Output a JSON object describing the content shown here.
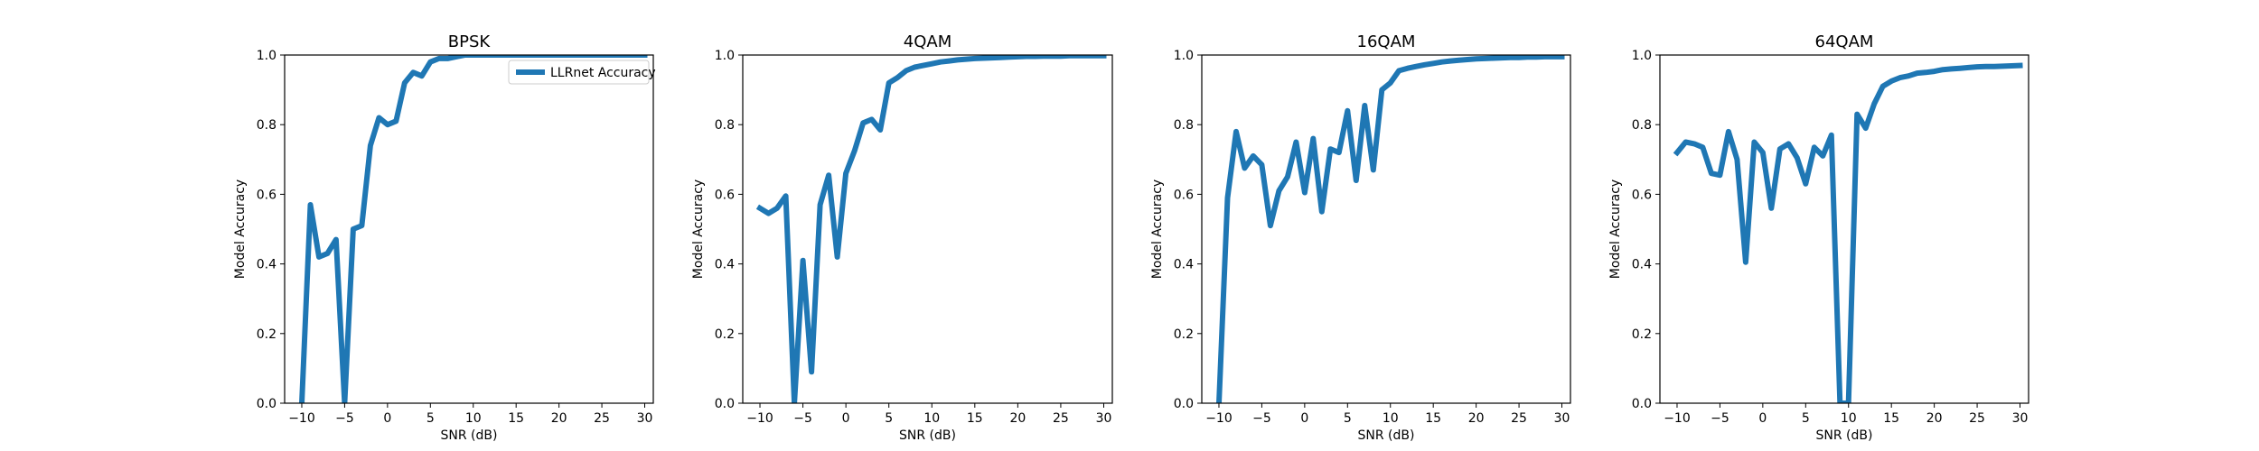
{
  "chart_data": [
    {
      "type": "line",
      "title": "BPSK",
      "xlabel": "SNR (dB)",
      "ylabel": "Model Accuracy",
      "xlim": [
        -12,
        31
      ],
      "ylim": [
        0,
        1
      ],
      "xticks": [
        -10,
        -5,
        0,
        5,
        10,
        15,
        20,
        25,
        30
      ],
      "yticks": [
        0.0,
        0.2,
        0.4,
        0.6,
        0.8,
        1.0
      ],
      "legend": {
        "position": "top-right",
        "entries": [
          "LLRnet Accuracy"
        ]
      },
      "series": [
        {
          "name": "LLRnet Accuracy",
          "color": "#1f77b4",
          "x": [
            -10,
            -9,
            -8,
            -7,
            -6,
            -5,
            -4,
            -3,
            -2,
            -1,
            0,
            1,
            2,
            3,
            4,
            5,
            6,
            7,
            8,
            9,
            10,
            11,
            12,
            13,
            14,
            15,
            16,
            17,
            18,
            19,
            20,
            21,
            22,
            23,
            24,
            25,
            26,
            27,
            28,
            29,
            30
          ],
          "y": [
            0.0,
            0.57,
            0.42,
            0.43,
            0.47,
            0.0,
            0.5,
            0.51,
            0.74,
            0.82,
            0.8,
            0.81,
            0.92,
            0.95,
            0.94,
            0.98,
            0.99,
            0.99,
            0.995,
            1.0,
            1.0,
            1.0,
            1.0,
            1.0,
            1.0,
            1.0,
            1.0,
            1.0,
            1.0,
            1.0,
            1.0,
            1.0,
            1.0,
            1.0,
            1.0,
            1.0,
            1.0,
            1.0,
            1.0,
            1.0,
            1.0
          ]
        }
      ]
    },
    {
      "type": "line",
      "title": "4QAM",
      "xlabel": "SNR (dB)",
      "ylabel": "Model Accuracy",
      "xlim": [
        -12,
        31
      ],
      "ylim": [
        0,
        1
      ],
      "xticks": [
        -10,
        -5,
        0,
        5,
        10,
        15,
        20,
        25,
        30
      ],
      "yticks": [
        0.0,
        0.2,
        0.4,
        0.6,
        0.8,
        1.0
      ],
      "series": [
        {
          "color": "#1f77b4",
          "x": [
            -10,
            -9,
            -8,
            -7,
            -6,
            -5,
            -4,
            -3,
            -2,
            -1,
            0,
            1,
            2,
            3,
            4,
            5,
            6,
            7,
            8,
            9,
            10,
            11,
            12,
            13,
            14,
            15,
            16,
            17,
            18,
            19,
            20,
            21,
            22,
            23,
            24,
            25,
            26,
            27,
            28,
            29,
            30
          ],
          "y": [
            0.56,
            0.545,
            0.56,
            0.595,
            0.0,
            0.41,
            0.09,
            0.57,
            0.655,
            0.42,
            0.66,
            0.725,
            0.805,
            0.815,
            0.785,
            0.92,
            0.935,
            0.955,
            0.965,
            0.97,
            0.975,
            0.98,
            0.983,
            0.986,
            0.988,
            0.99,
            0.991,
            0.992,
            0.993,
            0.994,
            0.995,
            0.996,
            0.996,
            0.997,
            0.997,
            0.997,
            0.998,
            0.998,
            0.998,
            0.998,
            0.998
          ]
        }
      ]
    },
    {
      "type": "line",
      "title": "16QAM",
      "xlabel": "SNR (dB)",
      "ylabel": "Model Accuracy",
      "xlim": [
        -12,
        31
      ],
      "ylim": [
        0,
        1
      ],
      "xticks": [
        -10,
        -5,
        0,
        5,
        10,
        15,
        20,
        25,
        30
      ],
      "yticks": [
        0.0,
        0.2,
        0.4,
        0.6,
        0.8,
        1.0
      ],
      "series": [
        {
          "color": "#1f77b4",
          "x": [
            -10,
            -9,
            -8,
            -7,
            -6,
            -5,
            -4,
            -3,
            -2,
            -1,
            0,
            1,
            2,
            3,
            4,
            5,
            6,
            7,
            8,
            9,
            10,
            11,
            12,
            13,
            14,
            15,
            16,
            17,
            18,
            19,
            20,
            21,
            22,
            23,
            24,
            25,
            26,
            27,
            28,
            29,
            30
          ],
          "y": [
            0.0,
            0.59,
            0.78,
            0.675,
            0.71,
            0.685,
            0.51,
            0.61,
            0.65,
            0.75,
            0.605,
            0.76,
            0.55,
            0.73,
            0.72,
            0.84,
            0.64,
            0.855,
            0.67,
            0.9,
            0.92,
            0.955,
            0.962,
            0.967,
            0.972,
            0.976,
            0.98,
            0.983,
            0.985,
            0.987,
            0.989,
            0.99,
            0.991,
            0.992,
            0.993,
            0.993,
            0.994,
            0.994,
            0.995,
            0.995,
            0.995
          ]
        }
      ]
    },
    {
      "type": "line",
      "title": "64QAM",
      "xlabel": "SNR (dB)",
      "ylabel": "Model Accuracy",
      "xlim": [
        -12,
        31
      ],
      "ylim": [
        0,
        1
      ],
      "xticks": [
        -10,
        -5,
        0,
        5,
        10,
        15,
        20,
        25,
        30
      ],
      "yticks": [
        0.0,
        0.2,
        0.4,
        0.6,
        0.8,
        1.0
      ],
      "series": [
        {
          "color": "#1f77b4",
          "x": [
            -10,
            -9,
            -8,
            -7,
            -6,
            -5,
            -4,
            -3,
            -2,
            -1,
            0,
            1,
            2,
            3,
            4,
            5,
            6,
            7,
            8,
            9,
            10,
            11,
            12,
            13,
            14,
            15,
            16,
            17,
            18,
            19,
            20,
            21,
            22,
            23,
            24,
            25,
            26,
            27,
            28,
            29,
            30
          ],
          "y": [
            0.72,
            0.75,
            0.745,
            0.735,
            0.66,
            0.655,
            0.78,
            0.7,
            0.405,
            0.75,
            0.72,
            0.56,
            0.73,
            0.745,
            0.705,
            0.63,
            0.735,
            0.71,
            0.77,
            0.0,
            0.0,
            0.83,
            0.79,
            0.86,
            0.91,
            0.925,
            0.935,
            0.94,
            0.948,
            0.95,
            0.953,
            0.958,
            0.96,
            0.962,
            0.964,
            0.966,
            0.967,
            0.967,
            0.968,
            0.969,
            0.97
          ]
        }
      ]
    }
  ]
}
